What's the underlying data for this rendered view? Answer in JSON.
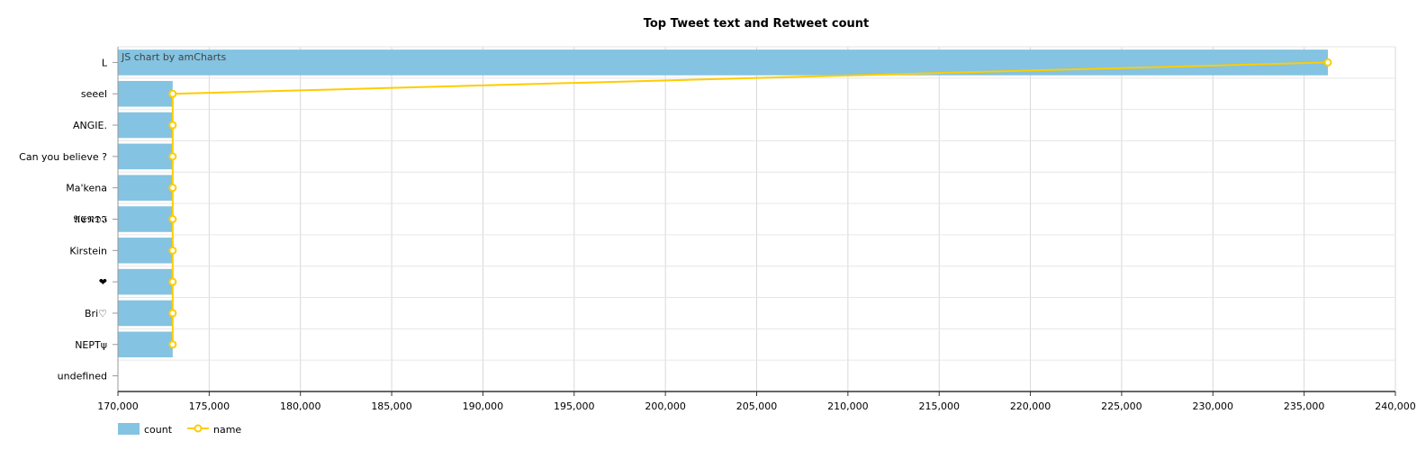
{
  "chart_data": {
    "type": "bar",
    "orientation": "horizontal",
    "title": "Top Tweet text and Retweet count",
    "credit": "JS chart by amCharts",
    "categories": [
      "L",
      "seeel",
      "ANGIE.",
      "Can you believe ?",
      "Ma'kena",
      "𝕬𝕰𝕹𝕯𝕴",
      "Kirstein",
      "❤",
      "Bri♡",
      "NEPTψ",
      "undefined"
    ],
    "series": [
      {
        "name": "count",
        "type": "bar",
        "color": "#84C3E1",
        "values": [
          236300,
          173000,
          173000,
          173000,
          173000,
          173000,
          173000,
          173000,
          173000,
          173000,
          null
        ]
      },
      {
        "name": "name",
        "type": "line",
        "color": "#FFCC00",
        "values": [
          236300,
          173000,
          173000,
          173000,
          173000,
          173000,
          173000,
          173000,
          173000,
          173000,
          null
        ]
      }
    ],
    "xlim": [
      170000,
      240000
    ],
    "x_ticks": [
      170000,
      175000,
      180000,
      185000,
      190000,
      195000,
      200000,
      205000,
      210000,
      215000,
      220000,
      225000,
      230000,
      235000,
      240000
    ],
    "x_tick_labels": [
      "170,000",
      "175,000",
      "180,000",
      "185,000",
      "190,000",
      "195,000",
      "200,000",
      "205,000",
      "210,000",
      "215,000",
      "220,000",
      "225,000",
      "230,000",
      "235,000",
      "240,000"
    ],
    "grid": true,
    "legend": "bottom-left",
    "legend_items": [
      "count",
      "name"
    ]
  }
}
